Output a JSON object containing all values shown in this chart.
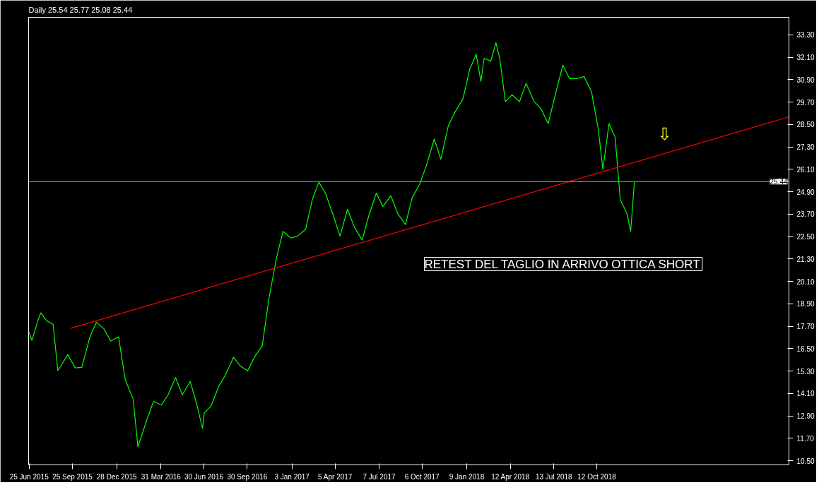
{
  "chart_data": {
    "type": "line",
    "title": "Daily  25.54 25.77 25.08 25.44",
    "x": [
      "2015-06-25",
      "2015-07-01",
      "2015-07-15",
      "2015-07-20",
      "2015-08-01",
      "2015-08-15",
      "2015-08-25",
      "2015-09-01",
      "2015-09-15",
      "2015-10-01",
      "2015-10-15",
      "2015-11-01",
      "2015-11-15",
      "2015-12-01",
      "2015-12-15",
      "2016-01-01",
      "2016-01-15",
      "2016-02-01",
      "2016-02-11",
      "2016-03-01",
      "2016-03-15",
      "2016-04-01",
      "2016-04-15",
      "2016-05-01",
      "2016-05-15",
      "2016-06-01",
      "2016-06-15",
      "2016-06-27",
      "2016-07-01",
      "2016-07-15",
      "2016-08-01",
      "2016-08-15",
      "2016-09-01",
      "2016-09-15",
      "2016-10-01",
      "2016-10-15",
      "2016-11-01",
      "2016-11-15",
      "2016-12-01",
      "2016-12-15",
      "2017-01-01",
      "2017-01-15",
      "2017-02-01",
      "2017-02-15",
      "2017-03-01",
      "2017-03-15",
      "2017-04-01",
      "2017-04-15",
      "2017-05-01",
      "2017-05-15",
      "2017-06-01",
      "2017-06-15",
      "2017-07-01",
      "2017-07-15",
      "2017-08-01",
      "2017-08-15",
      "2017-09-01",
      "2017-09-15",
      "2017-10-01",
      "2017-10-15",
      "2017-11-01",
      "2017-11-15",
      "2017-12-01",
      "2017-12-15",
      "2018-01-01",
      "2018-01-15",
      "2018-01-29",
      "2018-02-08",
      "2018-02-15",
      "2018-03-01",
      "2018-03-12",
      "2018-03-20",
      "2018-04-01",
      "2018-04-15",
      "2018-05-01",
      "2018-05-15",
      "2018-06-01",
      "2018-06-15",
      "2018-07-01",
      "2018-07-15",
      "2018-08-01",
      "2018-08-15",
      "2018-09-01",
      "2018-09-15",
      "2018-10-01",
      "2018-10-15",
      "2018-10-25",
      "2018-11-07",
      "2018-11-20",
      "2018-12-01",
      "2018-12-15",
      "2018-12-23",
      "2018-12-31"
    ],
    "series": [
      {
        "color": "#00ff00",
        "values": [
          17.38,
          16.94,
          18.1,
          18.42,
          18.0,
          17.8,
          15.33,
          15.6,
          16.19,
          15.47,
          15.5,
          17.13,
          17.92,
          17.56,
          16.91,
          17.13,
          14.86,
          13.78,
          11.25,
          12.7,
          13.67,
          13.49,
          14.03,
          14.96,
          14.03,
          14.75,
          13.52,
          12.23,
          13.06,
          13.42,
          14.5,
          15.11,
          16.04,
          15.58,
          15.32,
          16.04,
          16.66,
          19.18,
          21.34,
          22.78,
          22.42,
          22.53,
          22.89,
          24.47,
          25.41,
          24.83,
          23.61,
          22.53,
          23.97,
          23.03,
          22.31,
          23.61,
          24.83,
          24.11,
          24.69,
          23.75,
          23.14,
          24.58,
          25.3,
          26.28,
          27.72,
          26.64,
          28.44,
          29.16,
          29.88,
          31.43,
          32.26,
          30.81,
          32.04,
          31.9,
          32.87,
          32.04,
          29.73,
          30.09,
          29.73,
          30.71,
          29.73,
          29.37,
          28.55,
          29.99,
          31.68,
          30.96,
          30.96,
          31.07,
          30.24,
          28.29,
          26.1,
          28.55,
          27.82,
          24.47,
          23.75,
          22.78,
          25.44
        ]
      },
      {
        "type": "line",
        "color": "#ff0000",
        "x": [
          "2015-09-21",
          "2019-11-24"
        ],
        "values": [
          17.59,
          28.91
        ]
      }
    ],
    "ref_lines": [
      {
        "axis": "y",
        "value": 25.44,
        "label": "25.44",
        "color": "#a0a0c0"
      }
    ],
    "annotations": [
      "RETEST DEL TAGLIO IN ARRIVO OTTICA SHORT",
      "⇩"
    ],
    "xlim": [
      "2015-06-24",
      "2019-11-24"
    ],
    "xticks": [
      {
        "value": "2015-06-25",
        "label": "25 Jun 2015"
      },
      {
        "value": "2015-09-25",
        "label": "25 Sep 2015"
      },
      {
        "value": "2015-12-28",
        "label": "28 Dec 2015"
      },
      {
        "value": "2016-03-31",
        "label": "31 Mar 2016"
      },
      {
        "value": "2016-06-30",
        "label": "30 Jun 2016"
      },
      {
        "value": "2016-09-30",
        "label": "30 Sep 2016"
      },
      {
        "value": "2017-01-03",
        "label": "3 Jan 2017"
      },
      {
        "value": "2017-04-05",
        "label": "5 Apr 2017"
      },
      {
        "value": "2017-07-07",
        "label": "7 Jul 2017"
      },
      {
        "value": "2017-10-06",
        "label": "6 Oct 2017"
      },
      {
        "value": "2018-01-09",
        "label": "9 Jan 2018"
      },
      {
        "value": "2018-04-12",
        "label": "12 Apr 2018"
      },
      {
        "value": "2018-07-13",
        "label": "13 Jul 2018"
      },
      {
        "value": "2018-10-12",
        "label": "12 Oct 2018"
      }
    ],
    "ylim": [
      10.28,
      34.24
    ],
    "yticks": [
      {
        "value": 10.5,
        "label": "10.50"
      },
      {
        "value": 11.7,
        "label": "11.70"
      },
      {
        "value": 12.9,
        "label": "12.90"
      },
      {
        "value": 14.1,
        "label": "14.10"
      },
      {
        "value": 15.3,
        "label": "15.30"
      },
      {
        "value": 16.5,
        "label": "16.50"
      },
      {
        "value": 17.7,
        "label": "17.70"
      },
      {
        "value": 18.9,
        "label": "18.90"
      },
      {
        "value": 20.1,
        "label": "20.10"
      },
      {
        "value": 21.3,
        "label": "21.30"
      },
      {
        "value": 22.5,
        "label": "22.50"
      },
      {
        "value": 23.7,
        "label": "23.70"
      },
      {
        "value": 24.9,
        "label": "24.90"
      },
      {
        "value": 26.1,
        "label": "26.10"
      },
      {
        "value": 27.3,
        "label": "27.30"
      },
      {
        "value": 28.5,
        "label": "28.50"
      },
      {
        "value": 29.7,
        "label": "29.70"
      },
      {
        "value": 30.9,
        "label": "30.90"
      },
      {
        "value": 32.1,
        "label": "32.10"
      },
      {
        "value": 33.3,
        "label": "33.30"
      }
    ],
    "grid": false,
    "marker": "none",
    "line_style": "solid"
  }
}
